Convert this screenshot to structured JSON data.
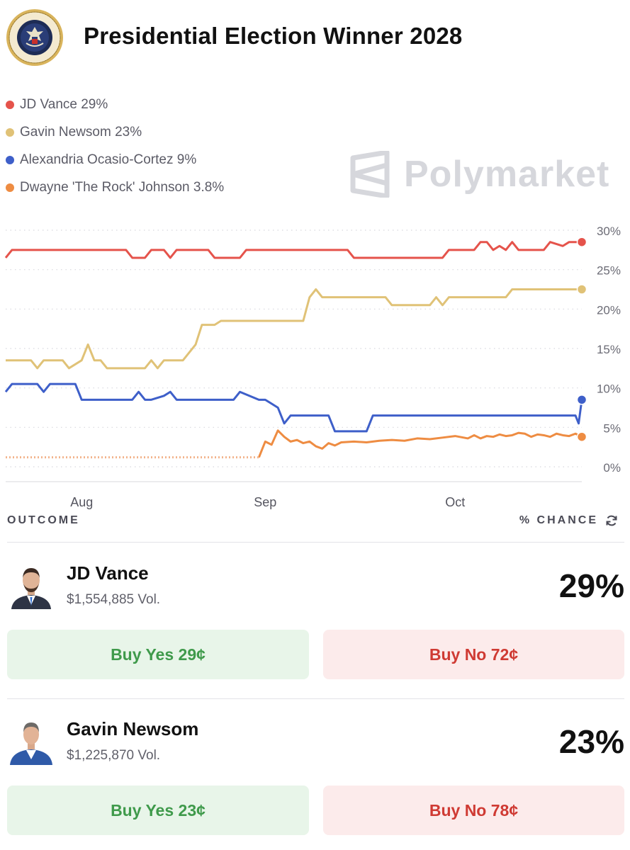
{
  "page": {
    "title": "Presidential Election Winner 2028",
    "seal_text": "SEAL OF THE PRESIDENT OF THE UNITED STATES",
    "watermark": "Polymarket"
  },
  "legend": [
    {
      "label": "JD Vance 29%",
      "color": "#e5534b"
    },
    {
      "label": "Gavin Newsom 23%",
      "color": "#e0c277"
    },
    {
      "label": "Alexandria Ocasio-Cortez 9%",
      "color": "#3e5fc9"
    },
    {
      "label": "Dwayne 'The Rock' Johnson 3.8%",
      "color": "#ee8c42"
    }
  ],
  "chart_data": {
    "type": "line",
    "x_ticks": [
      "Aug",
      "Sep",
      "Oct"
    ],
    "y_ticks": [
      "30%",
      "25%",
      "20%",
      "15%",
      "10%",
      "5%",
      "0%"
    ],
    "ylim": [
      0,
      30
    ],
    "grid": "dotted horizontal",
    "x_range_days": [
      0,
      91
    ],
    "x_tick_days": [
      12,
      41,
      71
    ],
    "series": [
      {
        "name": "JD Vance",
        "color": "#e5534b",
        "x": [
          0,
          1,
          19,
          20,
          22,
          23,
          25,
          26,
          27,
          29,
          32,
          33,
          37,
          38,
          46,
          47,
          54,
          55,
          69,
          70,
          74,
          75,
          76,
          77,
          78,
          79,
          80,
          81,
          82,
          83,
          85,
          86,
          88,
          89,
          91
        ],
        "y": [
          26.5,
          27.5,
          27.5,
          26.5,
          26.5,
          27.5,
          27.5,
          26.5,
          27.5,
          27.5,
          27.5,
          26.5,
          26.5,
          27.5,
          27.5,
          27.5,
          27.5,
          26.5,
          26.5,
          27.5,
          27.5,
          28.5,
          28.5,
          27.5,
          28,
          27.5,
          28.5,
          27.5,
          27.5,
          27.5,
          27.5,
          28.5,
          28,
          28.5,
          28.5
        ]
      },
      {
        "name": "Gavin Newsom",
        "color": "#e0c277",
        "x": [
          0,
          4,
          5,
          6,
          9,
          10,
          12,
          13,
          14,
          15,
          16,
          17,
          22,
          23,
          24,
          25,
          28,
          29,
          30,
          31,
          33,
          34,
          47,
          48,
          49,
          50,
          60,
          61,
          67,
          68,
          69,
          70,
          79,
          80,
          91
        ],
        "y": [
          13.5,
          13.5,
          12.5,
          13.5,
          13.5,
          12.5,
          13.5,
          15.5,
          13.5,
          13.5,
          12.5,
          12.5,
          12.5,
          13.5,
          12.5,
          13.5,
          13.5,
          14.5,
          15.5,
          18,
          18,
          18.5,
          18.5,
          21.5,
          22.5,
          21.5,
          21.5,
          20.5,
          20.5,
          21.5,
          20.5,
          21.5,
          21.5,
          22.5,
          22.5
        ]
      },
      {
        "name": "Alexandria Ocasio-Cortez",
        "color": "#3e5fc9",
        "x": [
          0,
          1,
          5,
          6,
          7,
          11,
          12,
          20,
          21,
          22,
          23,
          25,
          26,
          27,
          28,
          36,
          37,
          40,
          41,
          43,
          44,
          45,
          51,
          52,
          57,
          58,
          78,
          79,
          90,
          90.5,
          91
        ],
        "y": [
          9.5,
          10.5,
          10.5,
          9.5,
          10.5,
          10.5,
          8.5,
          8.5,
          9.5,
          8.5,
          8.5,
          9,
          9.5,
          8.5,
          8.5,
          8.5,
          9.5,
          8.5,
          8.5,
          7.5,
          5.5,
          6.5,
          6.5,
          4.5,
          4.5,
          6.5,
          6.5,
          6.5,
          6.5,
          5.5,
          8.5
        ]
      },
      {
        "name": "Dwayne 'The Rock' Johnson",
        "color": "#ee8c42",
        "x": [
          40,
          41,
          42,
          43,
          44,
          45,
          46,
          47,
          48,
          49,
          50,
          51,
          52,
          53,
          55,
          57,
          59,
          61,
          63,
          65,
          67,
          69,
          71,
          73,
          74,
          75,
          76,
          77,
          78,
          79,
          80,
          81,
          82,
          83,
          84,
          85,
          86,
          87,
          88,
          89,
          90,
          91
        ],
        "y": [
          1.2,
          3.2,
          2.8,
          4.6,
          3.8,
          3.2,
          3.4,
          3.0,
          3.2,
          2.6,
          2.3,
          3.0,
          2.7,
          3.1,
          3.2,
          3.1,
          3.3,
          3.4,
          3.3,
          3.6,
          3.5,
          3.7,
          3.9,
          3.6,
          4.0,
          3.6,
          3.9,
          3.8,
          4.1,
          3.9,
          4.0,
          4.3,
          4.2,
          3.8,
          4.1,
          4.0,
          3.8,
          4.2,
          4.0,
          3.9,
          4.2,
          3.8
        ]
      },
      {
        "name": "Dwayne 'The Rock' Johnson (dotted)",
        "color": "#f2b48c",
        "x": [
          0,
          40
        ],
        "y": [
          1.2,
          1.2
        ]
      }
    ]
  },
  "outcomes_header": {
    "left": "OUTCOME",
    "right": "% CHANCE"
  },
  "candidates": [
    {
      "name": "JD Vance",
      "volume": "$1,554,885 Vol.",
      "chance": "29%",
      "buy_yes": "Buy Yes 29¢",
      "buy_no": "Buy No 72¢"
    },
    {
      "name": "Gavin Newsom",
      "volume": "$1,225,870 Vol.",
      "chance": "23%",
      "buy_yes": "Buy Yes 23¢",
      "buy_no": "Buy No 78¢"
    }
  ]
}
